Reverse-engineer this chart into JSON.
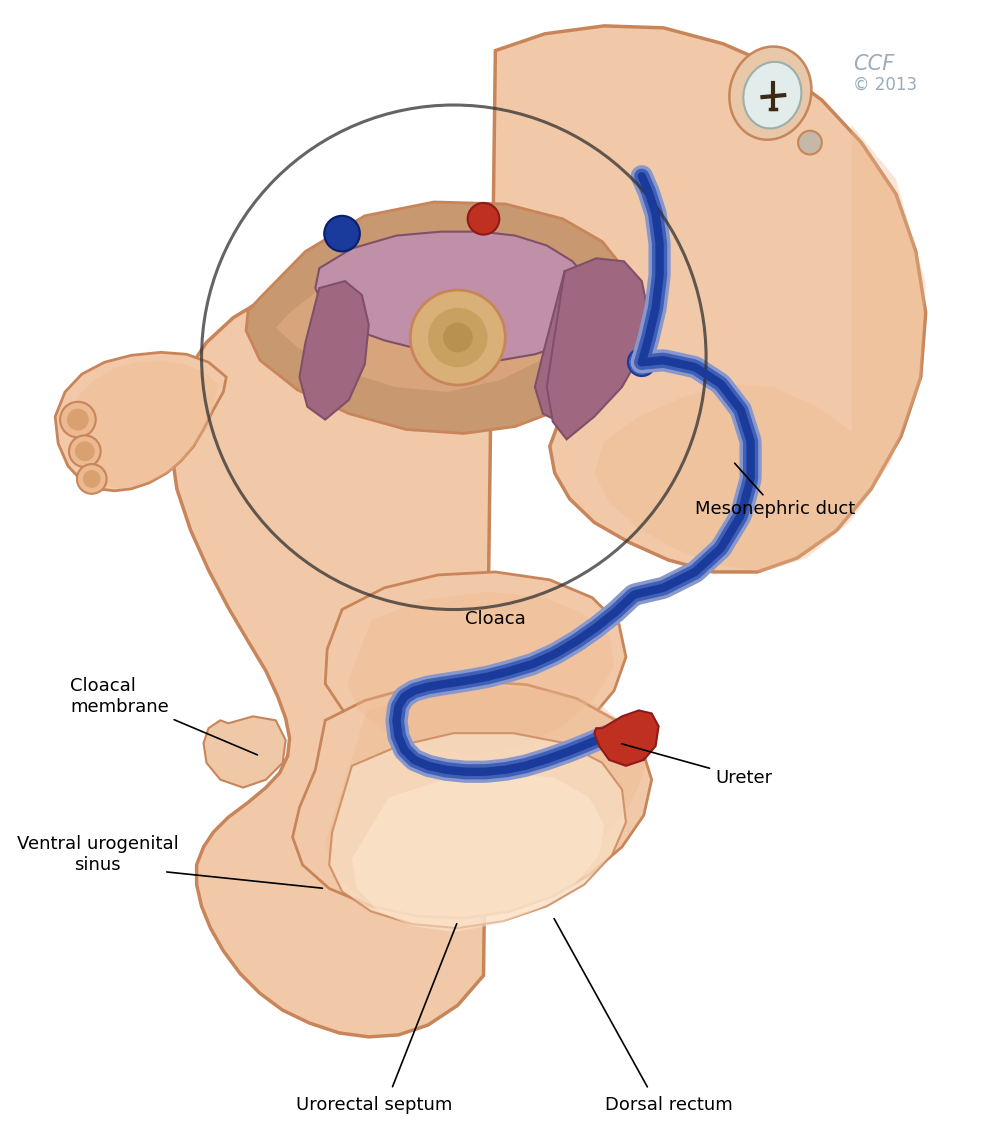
{
  "bg": "#ffffff",
  "skin": "#f2c9a8",
  "skin_mid": "#edb990",
  "skin_dark": "#d9a070",
  "skin_outline": "#c8855a",
  "skin_inner": "#e8b088",
  "cavity_color": "#c89870",
  "purple": "#a06880",
  "purple2": "#c090a8",
  "purple_dark": "#805068",
  "blue": "#1a3a9c",
  "blue_mid": "#4060b8",
  "blue_light": "#8898cc",
  "red": "#c03020",
  "red_dark": "#901818",
  "ccf_color": "#9aabba",
  "ann_color": "#000000",
  "label_fontsize": 13,
  "labels": {
    "mesonephric_duct": "Mesonephric duct",
    "cloaca": "Cloaca",
    "cloacal_membrane": "Cloacal\nmembrane",
    "ventral_urogenital": "Ventral urogenital\nsinus",
    "urorectal_septum": "Urorectal septum",
    "dorsal_rectum": "Dorsal rectum",
    "ureter": "Ureter"
  }
}
